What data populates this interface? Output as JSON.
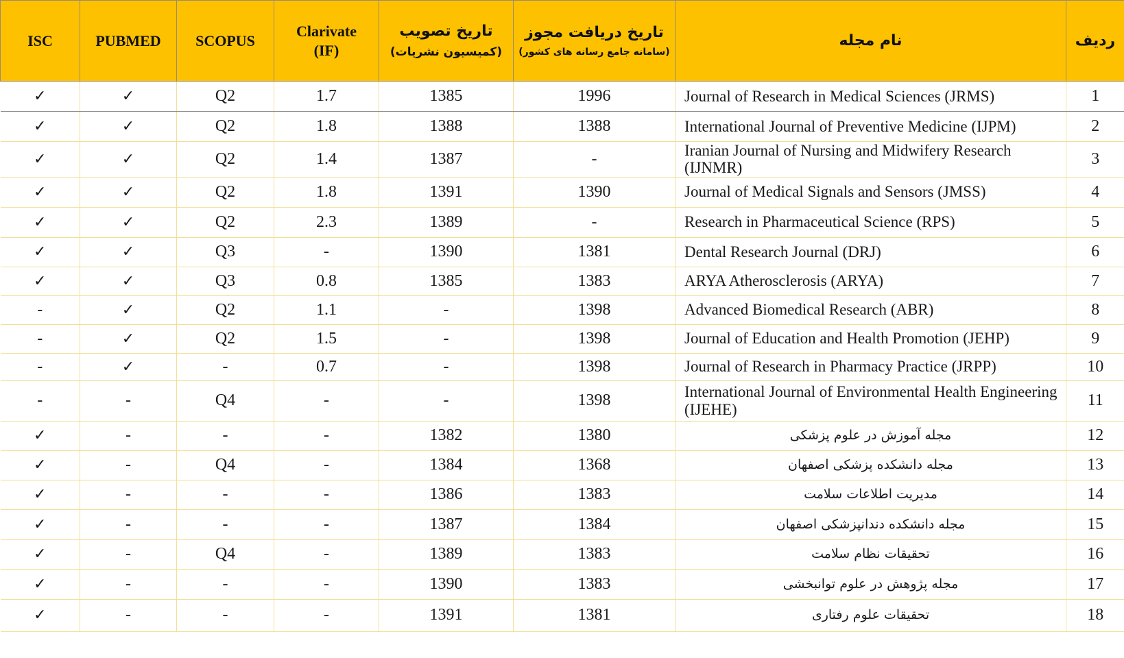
{
  "headers": {
    "row": "ردیف",
    "name": "نام مجله",
    "license_date": "تاریخ دریافت مجوز",
    "license_date_sub": "(سامانه جامع رسانه های کشور)",
    "approval_date": "تاریخ تصویب",
    "approval_date_sub": "(کمیسیون نشریات)",
    "clarivate": "Clarivate",
    "clarivate_sub": "(IF)",
    "scopus": "SCOPUS",
    "pubmed": "PUBMED",
    "isc": "ISC"
  },
  "rows": [
    {
      "n": "1",
      "name": "Journal of Research in Medical Sciences (JRMS)",
      "license": "1996",
      "approval": "1385",
      "if": "1.7",
      "scopus": "Q2",
      "pubmed": "✓",
      "isc": "✓"
    },
    {
      "n": "2",
      "name": "International Journal of Preventive Medicine (IJPM)",
      "license": "1388",
      "approval": "1388",
      "if": "1.8",
      "scopus": "Q2",
      "pubmed": "✓",
      "isc": "✓"
    },
    {
      "n": "3",
      "name": "Iranian Journal of Nursing and Midwifery Research (IJNMR)",
      "license": "-",
      "approval": "1387",
      "if": "1.4",
      "scopus": "Q2",
      "pubmed": "✓",
      "isc": "✓"
    },
    {
      "n": "4",
      "name": "Journal of Medical Signals and Sensors (JMSS)",
      "license": "1390",
      "approval": "1391",
      "if": "1.8",
      "scopus": "Q2",
      "pubmed": "✓",
      "isc": "✓"
    },
    {
      "n": "5",
      "name": "Research in Pharmaceutical Science (RPS)",
      "license": "-",
      "approval": "1389",
      "if": "2.3",
      "scopus": "Q2",
      "pubmed": "✓",
      "isc": "✓"
    },
    {
      "n": "6",
      "name": "Dental Research Journal (DRJ)",
      "license": "1381",
      "approval": "1390",
      "if": "-",
      "scopus": "Q3",
      "pubmed": "✓",
      "isc": "✓"
    },
    {
      "n": "7",
      "name": "ARYA Atherosclerosis (ARYA)",
      "license": "1383",
      "approval": "1385",
      "if": "0.8",
      "scopus": "Q3",
      "pubmed": "✓",
      "isc": "✓"
    },
    {
      "n": "8",
      "name": "Advanced Biomedical Research (ABR)",
      "license": "1398",
      "approval": "-",
      "if": "1.1",
      "scopus": "Q2",
      "pubmed": "✓",
      "isc": "-"
    },
    {
      "n": "9",
      "name": "Journal of Education and Health Promotion (JEHP)",
      "license": "1398",
      "approval": "-",
      "if": "1.5",
      "scopus": "Q2",
      "pubmed": "✓",
      "isc": "-"
    },
    {
      "n": "10",
      "name": "Journal of Research in Pharmacy Practice (JRPP)",
      "license": "1398",
      "approval": "-",
      "if": "0.7",
      "scopus": "-",
      "pubmed": "✓",
      "isc": "-"
    },
    {
      "n": "11",
      "name": "International Journal of Environmental Health Engineering (IJEHE)",
      "license": "1398",
      "approval": "-",
      "if": "-",
      "scopus": "Q4",
      "pubmed": "-",
      "isc": "-"
    },
    {
      "n": "12",
      "name": "مجله آموزش در علوم پزشکی",
      "license": "1380",
      "approval": "1382",
      "if": "-",
      "scopus": "-",
      "pubmed": "-",
      "isc": "✓"
    },
    {
      "n": "13",
      "name": "مجله دانشکده پزشکی اصفهان",
      "license": "1368",
      "approval": "1384",
      "if": "-",
      "scopus": "Q4",
      "pubmed": "-",
      "isc": "✓"
    },
    {
      "n": "14",
      "name": "مدیریت اطلاعات سلامت",
      "license": "1383",
      "approval": "1386",
      "if": "-",
      "scopus": "-",
      "pubmed": "-",
      "isc": "✓"
    },
    {
      "n": "15",
      "name": "مجله دانشکده دندانپزشکی اصفهان",
      "license": "1384",
      "approval": "1387",
      "if": "-",
      "scopus": "-",
      "pubmed": "-",
      "isc": "✓"
    },
    {
      "n": "16",
      "name": "تحقیقات نظام سلامت",
      "license": "1383",
      "approval": "1389",
      "if": "-",
      "scopus": "Q4",
      "pubmed": "-",
      "isc": "✓"
    },
    {
      "n": "17",
      "name": "مجله پژوهش در علوم توانبخشی",
      "license": "1383",
      "approval": "1390",
      "if": "-",
      "scopus": "-",
      "pubmed": "-",
      "isc": "✓"
    },
    {
      "n": "18",
      "name": "تحقیقات علوم رفتاری",
      "license": "1381",
      "approval": "1391",
      "if": "-",
      "scopus": "-",
      "pubmed": "-",
      "isc": "✓"
    }
  ]
}
